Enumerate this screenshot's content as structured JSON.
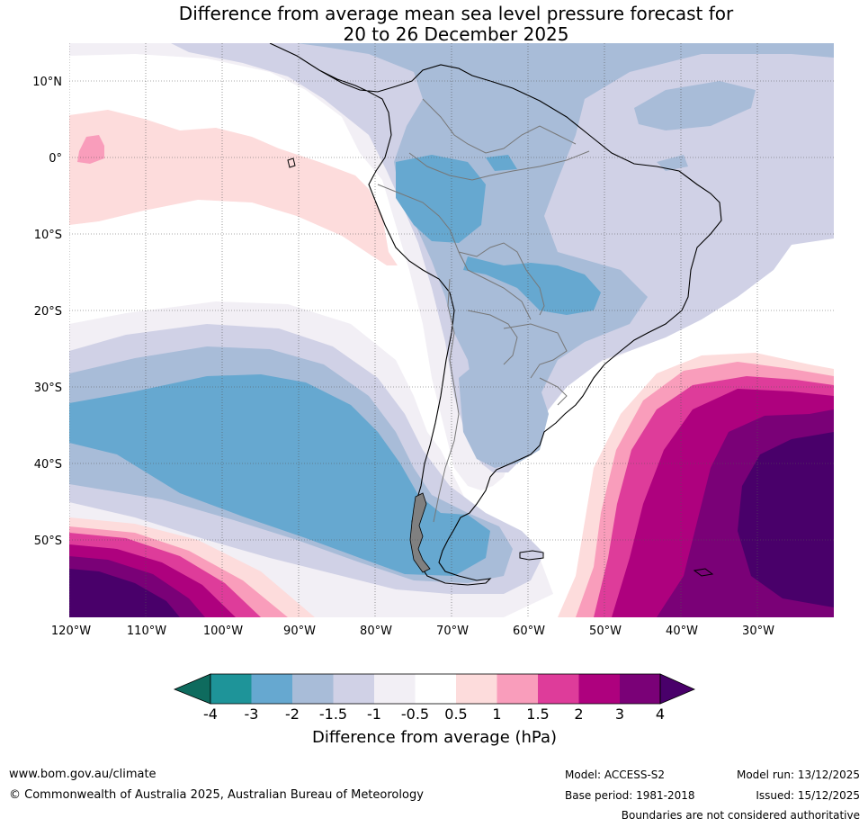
{
  "title": {
    "line1": "Difference from average mean sea level pressure forecast for",
    "line2": "20 to 26 December 2025"
  },
  "lat_labels": [
    "10°N",
    "0°",
    "10°S",
    "20°S",
    "30°S",
    "40°S",
    "50°S"
  ],
  "lon_labels": [
    "120°W",
    "110°W",
    "100°W",
    "90°W",
    "80°W",
    "70°W",
    "60°W",
    "50°W",
    "40°W",
    "30°W"
  ],
  "colorbar": {
    "title": "Difference from average (hPa)",
    "ticks": [
      "-4",
      "-3",
      "-2",
      "-1.5",
      "-1",
      "-0.5",
      "0.5",
      "1",
      "1.5",
      "2",
      "3",
      "4"
    ],
    "colors": [
      "#0e6b5e",
      "#1e9499",
      "#66a8d0",
      "#a8bcd8",
      "#d0d1e6",
      "#f2eff5",
      "#ffffff",
      "#fddcdc",
      "#f99dbb",
      "#de3c9a",
      "#ae017e",
      "#7a0177",
      "#49006a"
    ]
  },
  "footer": {
    "website": "www.bom.gov.au/climate",
    "copyright": "© Commonwealth of Australia 2025, Australian Bureau of Meteorology",
    "model": "Model: ACCESS-S2",
    "base_period": "Base period: 1981-2018",
    "model_run": "Model run: 13/12/2025",
    "issued": "Issued: 15/12/2025",
    "disclaimer": "Boundaries are not considered authoritative"
  }
}
